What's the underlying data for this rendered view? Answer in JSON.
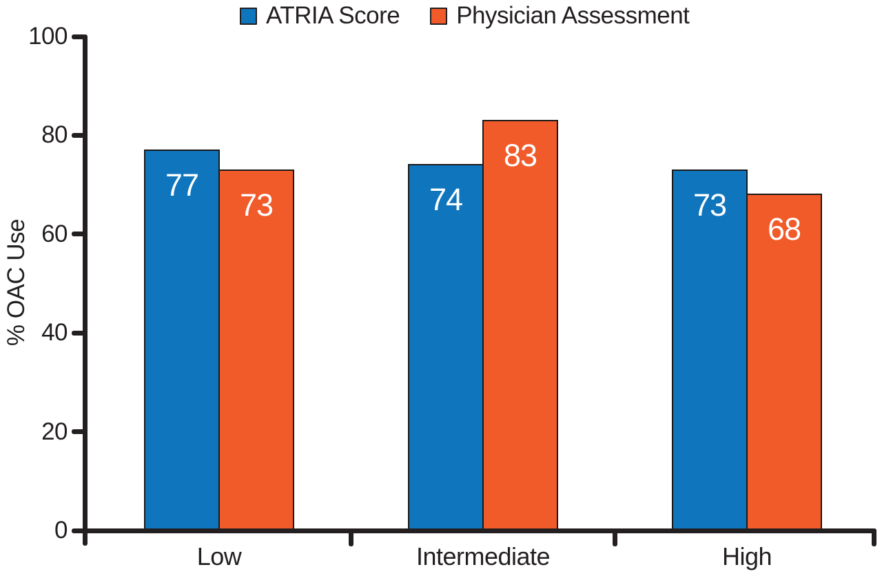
{
  "colors": {
    "atria_blue": "#0F75BC",
    "physician_orange": "#F15A29",
    "ink": "#231F20",
    "bar_value_text": "#FFFFFF",
    "background": "#FFFFFF"
  },
  "legend": {
    "items": [
      {
        "label": "ATRIA Score",
        "color": "#0F75BC"
      },
      {
        "label": "Physician Assessment",
        "color": "#F15A29"
      }
    ]
  },
  "chart_data": {
    "type": "bar",
    "title": "",
    "xlabel": "",
    "ylabel": "% OAC Use",
    "categories": [
      "Low",
      "Intermediate",
      "High"
    ],
    "series": [
      {
        "name": "ATRIA Score",
        "color": "#0F75BC",
        "values": [
          77,
          74,
          73
        ]
      },
      {
        "name": "Physician Assessment",
        "color": "#F15A29",
        "values": [
          73,
          83,
          68
        ]
      }
    ],
    "bar_value_labels": true,
    "ylim": [
      0,
      100
    ],
    "yticks": [
      0,
      20,
      40,
      60,
      80,
      100
    ],
    "grid": false,
    "legend_position": "top-center"
  }
}
